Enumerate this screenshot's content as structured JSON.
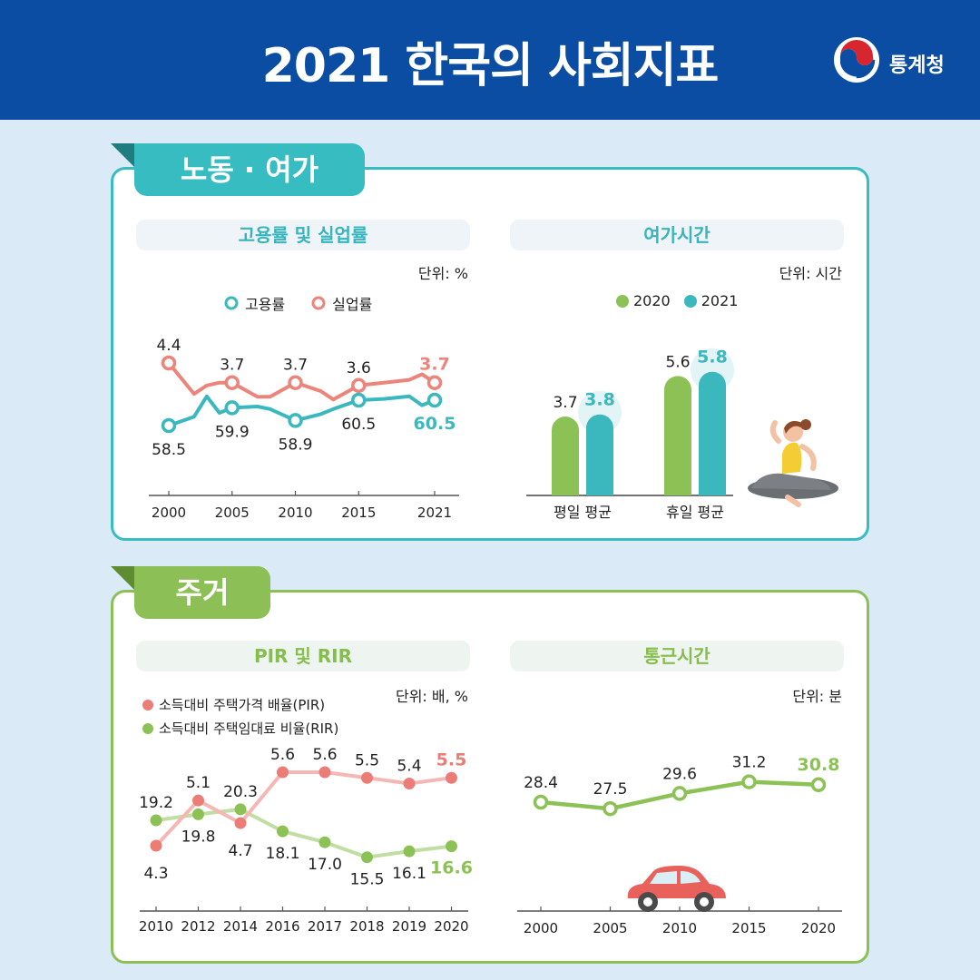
{
  "header": {
    "title": "2021 한국의 사회지표",
    "org": "통계청",
    "bg_color": "#0b4da2"
  },
  "sections": {
    "labor": {
      "title": "노동 · 여가",
      "color": "#36bcc1"
    },
    "housing": {
      "title": "주거",
      "color": "#8cc056"
    }
  },
  "charts": {
    "employment": {
      "subtitle": "고용률 및 실업률",
      "unit": "단위: %",
      "legend": [
        "고용률",
        "실업률"
      ],
      "colors": {
        "employment": "#3bb8bd",
        "unemployment": "#eb857b"
      }
    },
    "leisure": {
      "subtitle": "여가시간",
      "unit": "단위: 시간",
      "legend": [
        "2020",
        "2021"
      ],
      "colors": {
        "y2020": "#8cc255",
        "y2021": "#3bb8bd"
      }
    },
    "pir": {
      "subtitle": "PIR 및 RIR",
      "unit": "단위: 배, %",
      "legend": [
        "소득대비 주택가격 배율(PIR)",
        "소득대비 주택임대료 비율(RIR)"
      ],
      "colors": {
        "pir": "#eb7c76",
        "rir": "#8cc255"
      }
    },
    "commute": {
      "subtitle": "통근시간",
      "unit": "단위: 분",
      "colors": {
        "line": "#8cc255"
      }
    }
  },
  "chart_data": [
    {
      "type": "line",
      "title": "고용률 및 실업률",
      "unit": "%",
      "x_ticks": [
        "2000",
        "2005",
        "2010",
        "2015",
        "2021"
      ],
      "x": [
        2000,
        2002,
        2003,
        2004,
        2005,
        2007,
        2008,
        2010,
        2012,
        2013,
        2015,
        2017,
        2019,
        2020,
        2021
      ],
      "series": [
        {
          "name": "고용률",
          "values": [
            58.5,
            59.2,
            60.8,
            59.5,
            59.9,
            60.0,
            59.8,
            58.9,
            59.4,
            59.8,
            60.5,
            60.6,
            60.8,
            60.1,
            60.5
          ],
          "labeled": {
            "2000": "58.5",
            "2005": "59.9",
            "2010": "58.9",
            "2015": "60.5",
            "2021": "60.5"
          }
        },
        {
          "name": "실업률",
          "values": [
            4.4,
            3.3,
            3.6,
            3.7,
            3.7,
            3.2,
            3.2,
            3.7,
            3.4,
            3.1,
            3.6,
            3.7,
            3.8,
            4.0,
            3.7
          ],
          "labeled": {
            "2000": "4.4",
            "2005": "3.7",
            "2010": "3.7",
            "2015": "3.6",
            "2021": "3.7"
          }
        }
      ]
    },
    {
      "type": "bar",
      "title": "여가시간",
      "unit": "시간",
      "categories": [
        "평일 평균",
        "휴일 평균"
      ],
      "series": [
        {
          "name": "2020",
          "values": [
            3.7,
            5.6
          ]
        },
        {
          "name": "2021",
          "values": [
            3.8,
            5.8
          ]
        }
      ]
    },
    {
      "type": "line",
      "title": "PIR 및 RIR",
      "unit": "배, %",
      "categories": [
        "2010",
        "2012",
        "2014",
        "2016",
        "2017",
        "2018",
        "2019",
        "2020"
      ],
      "series": [
        {
          "name": "소득대비 주택가격 배율(PIR)",
          "values": [
            4.3,
            5.1,
            4.7,
            5.6,
            5.6,
            5.5,
            5.4,
            5.5
          ]
        },
        {
          "name": "소득대비 주택임대료 비율(RIR)",
          "values": [
            19.2,
            19.8,
            20.3,
            18.1,
            17.0,
            15.5,
            16.1,
            16.6
          ]
        }
      ]
    },
    {
      "type": "line",
      "title": "통근시간",
      "unit": "분",
      "categories": [
        "2000",
        "2005",
        "2010",
        "2015",
        "2020"
      ],
      "series": [
        {
          "name": "통근시간",
          "values": [
            28.4,
            27.5,
            29.6,
            31.2,
            30.8
          ]
        }
      ]
    }
  ]
}
